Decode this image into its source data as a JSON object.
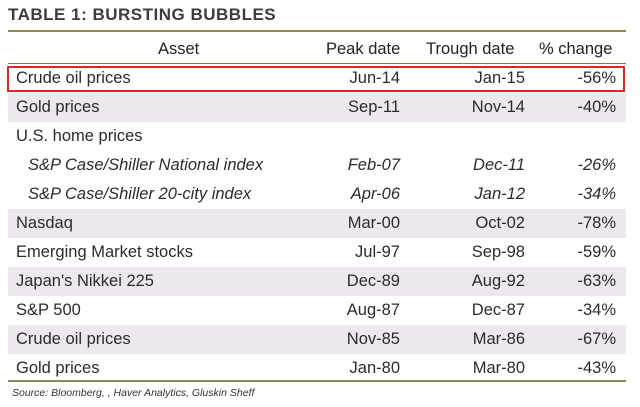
{
  "title": "TABLE 1: BURSTING BUBBLES",
  "columns": [
    "Asset",
    "Peak date",
    "Trough date",
    "% change"
  ],
  "rows": [
    {
      "asset": "Crude oil prices",
      "peak": "Jun-14",
      "trough": "Jan-15",
      "change": "-56%",
      "shade": false,
      "sub": false
    },
    {
      "asset": "Gold prices",
      "peak": "Sep-11",
      "trough": "Nov-14",
      "change": "-40%",
      "shade": true,
      "sub": false
    },
    {
      "asset": "U.S. home prices",
      "peak": "",
      "trough": "",
      "change": "",
      "shade": false,
      "sub": false
    },
    {
      "asset": "S&P Case/Shiller National index",
      "peak": "Feb-07",
      "trough": "Dec-11",
      "change": "-26%",
      "shade": false,
      "sub": true
    },
    {
      "asset": "S&P Case/Shiller 20-city index",
      "peak": "Apr-06",
      "trough": "Jan-12",
      "change": "-34%",
      "shade": false,
      "sub": true
    },
    {
      "asset": "Nasdaq",
      "peak": "Mar-00",
      "trough": "Oct-02",
      "change": "-78%",
      "shade": true,
      "sub": false
    },
    {
      "asset": "Emerging Market stocks",
      "peak": "Jul-97",
      "trough": "Sep-98",
      "change": "-59%",
      "shade": false,
      "sub": false
    },
    {
      "asset": "Japan's Nikkei 225",
      "peak": "Dec-89",
      "trough": "Aug-92",
      "change": "-63%",
      "shade": true,
      "sub": false
    },
    {
      "asset": "S&P 500",
      "peak": "Aug-87",
      "trough": "Dec-87",
      "change": "-34%",
      "shade": false,
      "sub": false
    },
    {
      "asset": "Crude oil prices",
      "peak": "Nov-85",
      "trough": "Mar-86",
      "change": "-67%",
      "shade": true,
      "sub": false
    },
    {
      "asset": "Gold prices",
      "peak": "Jan-80",
      "trough": "Mar-80",
      "change": "-43%",
      "shade": false,
      "sub": false
    }
  ],
  "highlight_color": "#d42a2a",
  "source": "Source: Bloomberg, , Haver Analytics, Gluskin Sheff"
}
